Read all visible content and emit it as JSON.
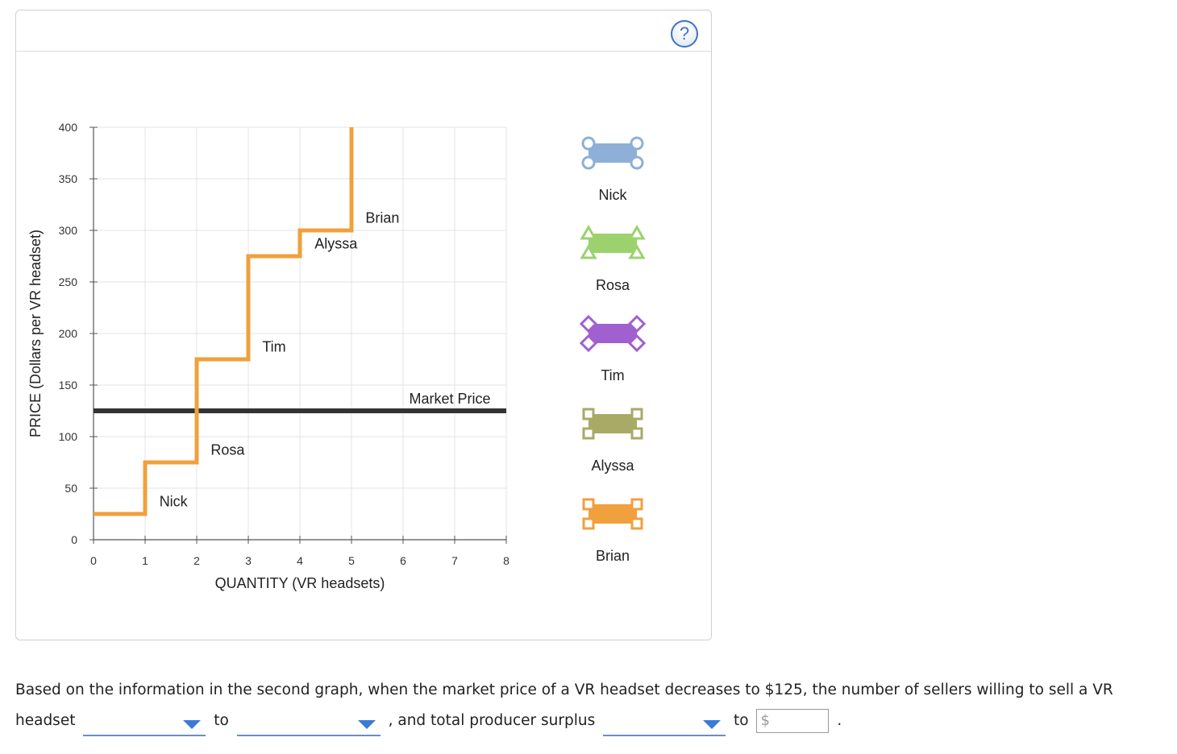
{
  "help": {
    "label": "?"
  },
  "chart_data": {
    "type": "step-line",
    "xlabel": "QUANTITY (VR headsets)",
    "ylabel": "PRICE (Dollars per VR headset)",
    "xlim": [
      0,
      8
    ],
    "ylim": [
      0,
      400
    ],
    "x_ticks": [
      0,
      1,
      2,
      3,
      4,
      5,
      6,
      7,
      8
    ],
    "y_ticks": [
      0,
      50,
      100,
      150,
      200,
      250,
      300,
      350,
      400
    ],
    "supply_curve": {
      "color": "#f0a03c",
      "points": [
        [
          0,
          25
        ],
        [
          1,
          25
        ],
        [
          1,
          75
        ],
        [
          2,
          75
        ],
        [
          2,
          175
        ],
        [
          3,
          175
        ],
        [
          3,
          275
        ],
        [
          4,
          275
        ],
        [
          4,
          300
        ],
        [
          5,
          300
        ],
        [
          5,
          400
        ]
      ]
    },
    "seller_labels": [
      {
        "name": "Nick",
        "x": 1.55,
        "y": 37
      },
      {
        "name": "Rosa",
        "x": 2.6,
        "y": 87
      },
      {
        "name": "Tim",
        "x": 3.5,
        "y": 187
      },
      {
        "name": "Alyssa",
        "x": 4.7,
        "y": 287
      },
      {
        "name": "Brian",
        "x": 5.6,
        "y": 312
      }
    ],
    "market_price": {
      "label": "Market Price",
      "value": 125,
      "color": "#333333"
    }
  },
  "legend": [
    {
      "name": "Nick",
      "color": "#8eafd7",
      "marker": "circle"
    },
    {
      "name": "Rosa",
      "color": "#9bd26d",
      "marker": "triangle"
    },
    {
      "name": "Tim",
      "color": "#a060d0",
      "marker": "diamond"
    },
    {
      "name": "Alyssa",
      "color": "#a8aa66",
      "marker": "square"
    },
    {
      "name": "Brian",
      "color": "#f0a03c",
      "marker": "square"
    }
  ],
  "question": {
    "text1": "Based on the information in the second graph, when the market price of a VR headset decreases to $125, the number of sellers willing to sell a VR headset",
    "text2": "to",
    "text3": ", and total producer surplus",
    "text4": "to",
    "currency": "$",
    "end": "."
  }
}
